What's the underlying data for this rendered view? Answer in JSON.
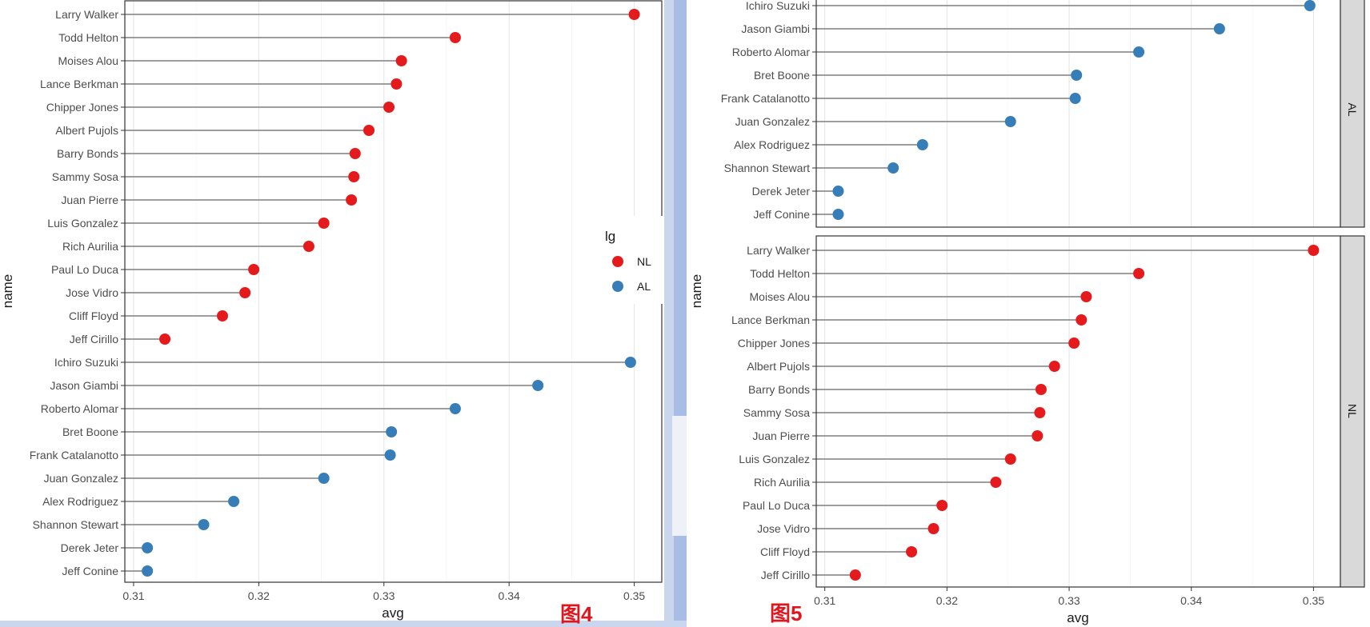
{
  "chart_data": [
    {
      "type": "lollipop",
      "figure_label": "图4",
      "xlabel": "avg",
      "ylabel": "name",
      "xticks": [
        0.31,
        0.32,
        0.33,
        0.34,
        0.35
      ],
      "xlim": [
        0.3093,
        0.3522
      ],
      "legend": {
        "title": "lg",
        "position": "right",
        "items": [
          {
            "label": "NL",
            "color": "#e41a1c"
          },
          {
            "label": "AL",
            "color": "#377eb8"
          }
        ]
      },
      "categories": [
        "Larry Walker",
        "Todd Helton",
        "Moises Alou",
        "Lance Berkman",
        "Chipper Jones",
        "Albert Pujols",
        "Barry Bonds",
        "Sammy Sosa",
        "Juan Pierre",
        "Luis Gonzalez",
        "Rich Aurilia",
        "Paul Lo Duca",
        "Jose Vidro",
        "Cliff Floyd",
        "Jeff Cirillo",
        "Ichiro Suzuki",
        "Jason Giambi",
        "Roberto Alomar",
        "Bret Boone",
        "Frank Catalanotto",
        "Juan Gonzalez",
        "Alex Rodriguez",
        "Shannon Stewart",
        "Derek Jeter",
        "Jeff Conine"
      ],
      "values": [
        0.35,
        0.3357,
        0.3314,
        0.331,
        0.3304,
        0.3288,
        0.3277,
        0.3276,
        0.3274,
        0.3252,
        0.324,
        0.3196,
        0.3189,
        0.3171,
        0.3125,
        0.3497,
        0.3423,
        0.3357,
        0.3306,
        0.3305,
        0.3252,
        0.318,
        0.3156,
        0.3111,
        0.3111
      ],
      "lg": [
        "NL",
        "NL",
        "NL",
        "NL",
        "NL",
        "NL",
        "NL",
        "NL",
        "NL",
        "NL",
        "NL",
        "NL",
        "NL",
        "NL",
        "NL",
        "AL",
        "AL",
        "AL",
        "AL",
        "AL",
        "AL",
        "AL",
        "AL",
        "AL",
        "AL"
      ]
    },
    {
      "type": "lollipop",
      "figure_label": "图5",
      "xlabel": "avg",
      "ylabel": "name",
      "xticks": [
        0.31,
        0.32,
        0.33,
        0.34,
        0.35
      ],
      "xlim": [
        0.3093,
        0.3522
      ],
      "facets": [
        {
          "strip": "AL",
          "color": "#377eb8",
          "categories": [
            "Ichiro Suzuki",
            "Jason Giambi",
            "Roberto Alomar",
            "Bret Boone",
            "Frank Catalanotto",
            "Juan Gonzalez",
            "Alex Rodriguez",
            "Shannon Stewart",
            "Derek Jeter",
            "Jeff Conine"
          ],
          "values": [
            0.3497,
            0.3423,
            0.3357,
            0.3306,
            0.3305,
            0.3252,
            0.318,
            0.3156,
            0.3111,
            0.3111
          ]
        },
        {
          "strip": "NL",
          "color": "#e41a1c",
          "categories": [
            "Larry Walker",
            "Todd Helton",
            "Moises Alou",
            "Lance Berkman",
            "Chipper Jones",
            "Albert Pujols",
            "Barry Bonds",
            "Sammy Sosa",
            "Juan Pierre",
            "Luis Gonzalez",
            "Rich Aurilia",
            "Paul Lo Duca",
            "Jose Vidro",
            "Cliff Floyd",
            "Jeff Cirillo"
          ],
          "values": [
            0.35,
            0.3357,
            0.3314,
            0.331,
            0.3304,
            0.3288,
            0.3277,
            0.3276,
            0.3274,
            0.3252,
            0.324,
            0.3196,
            0.3189,
            0.3171,
            0.3125
          ]
        }
      ]
    }
  ]
}
